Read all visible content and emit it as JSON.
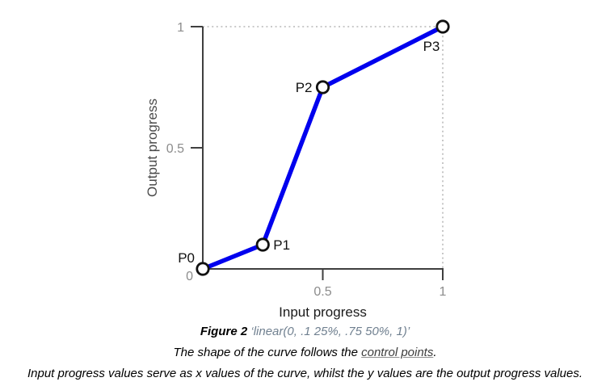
{
  "chart_data": {
    "type": "line",
    "xlabel": "Input progress",
    "ylabel": "Output progress",
    "xlim": [
      0,
      1
    ],
    "ylim": [
      0,
      1
    ],
    "grid": false,
    "line_color": "#0000ee",
    "guide_color": "#b9b9b9",
    "x_ticks": [
      {
        "value": 0.5,
        "label": "0.5"
      },
      {
        "value": 1,
        "label": "1"
      }
    ],
    "y_ticks": [
      {
        "value": 1,
        "label": "1"
      },
      {
        "value": 0.5,
        "label": "0.5"
      }
    ],
    "origin_label": "0",
    "points": [
      {
        "name": "P0",
        "x": 0,
        "y": 0
      },
      {
        "name": "P1",
        "x": 0.25,
        "y": 0.1
      },
      {
        "name": "P2",
        "x": 0.5,
        "y": 0.75
      },
      {
        "name": "P3",
        "x": 1,
        "y": 1
      }
    ]
  },
  "caption": {
    "figure_label": "Figure 2",
    "figure_ref": "‘linear(0, .1 25%, .75 50%, 1)’",
    "line2_prefix": "The shape of the curve follows the ",
    "line2_link": "control points",
    "line2_suffix": ".",
    "line3": "Input progress values serve as x values of the curve, whilst the y values are the output progress values."
  }
}
